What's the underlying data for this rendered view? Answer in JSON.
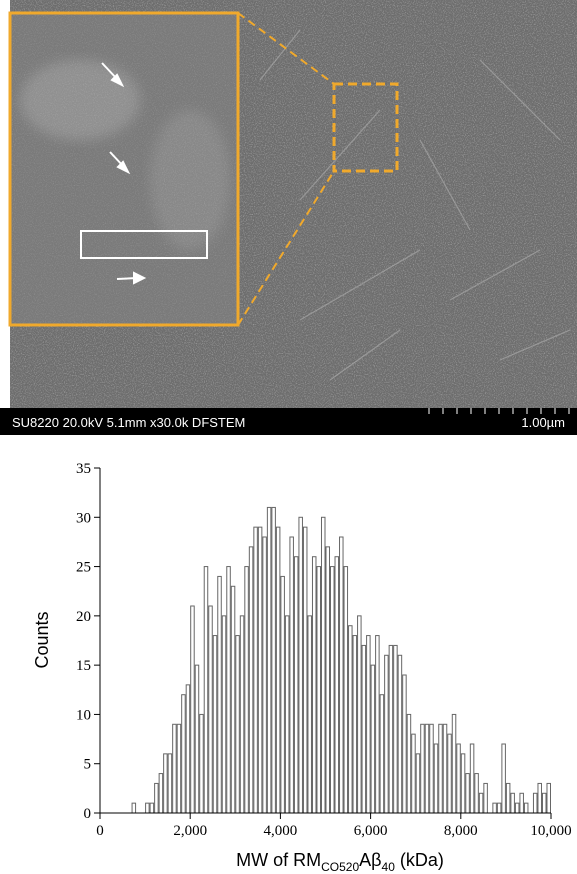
{
  "image": {
    "caption": "SU8220 20.0kV 5.1mm x30.0k DFSTEM",
    "scale_bar": "1.00µm"
  },
  "chart_data": {
    "type": "histogram",
    "y_label": "Counts",
    "x_label": [
      "MW of RM",
      "CO520",
      "Aβ",
      "40",
      " (kDa)"
    ],
    "bins": [
      600,
      700,
      800,
      900,
      1000,
      1100,
      1200,
      1300,
      1400,
      1500,
      1600,
      1700,
      1800,
      1900,
      2000,
      2100,
      2200,
      2300,
      2400,
      2500,
      2600,
      2700,
      2800,
      2900,
      3000,
      3100,
      3200,
      3300,
      3400,
      3500,
      3600,
      3700,
      3800,
      3900,
      4000,
      4100,
      4200,
      4300,
      4400,
      4500,
      4600,
      4700,
      4800,
      4900,
      5000,
      5100,
      5200,
      5300,
      5400,
      5500,
      5600,
      5700,
      5800,
      5900,
      6000,
      6100,
      6200,
      6300,
      6400,
      6500,
      6600,
      6700,
      6800,
      6900,
      7000,
      7100,
      7200,
      7300,
      7400,
      7500,
      7600,
      7700,
      7800,
      7900,
      8000,
      8100,
      8200,
      8300,
      8400,
      8500,
      8600,
      8700,
      8800,
      8900,
      9000,
      9100,
      9200,
      9300,
      9400,
      9500,
      9600,
      9700,
      9800,
      9900,
      10000
    ],
    "counts": [
      0,
      1,
      0,
      0,
      1,
      1,
      3,
      4,
      6,
      6,
      9,
      9,
      12,
      13,
      21,
      15,
      10,
      25,
      21,
      18,
      24,
      20,
      25,
      23,
      18,
      20,
      25,
      27,
      29,
      29,
      28,
      31,
      31,
      29,
      24,
      20,
      28,
      26,
      30,
      29,
      20,
      26,
      25,
      30,
      27,
      25,
      26,
      28,
      25,
      19,
      18,
      20,
      17,
      18,
      15,
      18,
      12,
      16,
      17,
      17,
      16,
      14,
      10,
      8,
      6,
      9,
      9,
      9,
      7,
      9,
      9,
      8,
      10,
      7,
      6,
      4,
      7,
      4,
      2,
      3,
      0,
      1,
      1,
      7,
      3,
      2,
      1,
      2,
      1,
      0,
      2,
      3,
      2,
      3
    ],
    "color": "#ffffff",
    "edge_color": "#666666",
    "xlim": [
      0,
      10000
    ],
    "xticks": [
      0,
      {
        "value": 2000,
        "label": "2,000"
      },
      {
        "value": 4000,
        "label": "4,000"
      },
      {
        "value": 6000,
        "label": "6,000"
      },
      {
        "value": 8000,
        "label": "8,000"
      },
      {
        "value": 10000,
        "label": "10,000"
      }
    ],
    "ylim": [
      0,
      35
    ],
    "yticks": [
      0,
      5,
      10,
      15,
      20,
      25,
      30,
      35
    ]
  }
}
